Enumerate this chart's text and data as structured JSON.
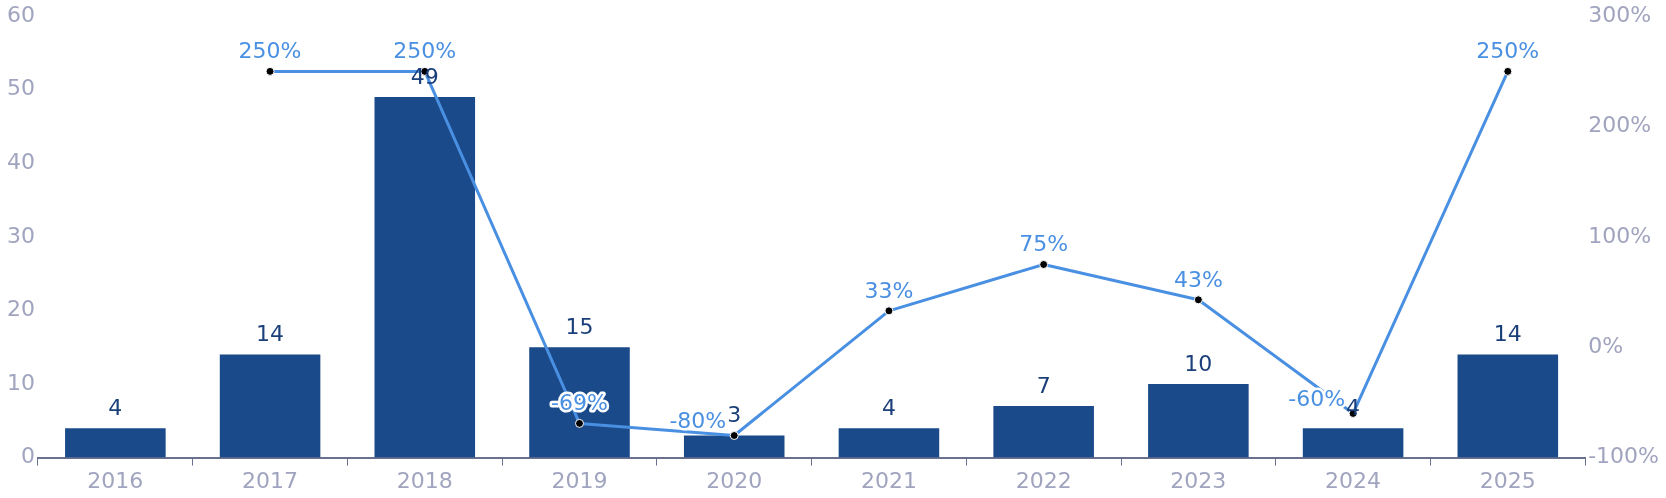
{
  "chart_data": {
    "type": "bar",
    "categories": [
      "2016",
      "2017",
      "2018",
      "2019",
      "2020",
      "2021",
      "2022",
      "2023",
      "2024",
      "2025"
    ],
    "series": [
      {
        "color": "#1a4a8a",
        "values": [
          4,
          14,
          49,
          15,
          3,
          4,
          7,
          10,
          4,
          14
        ],
        "value_labels": [
          "4",
          "14",
          "49",
          "15",
          "3",
          "4",
          "7",
          "10",
          "4",
          "14"
        ]
      },
      {
        "type": "line",
        "axis": "y2",
        "color": "#4a90e2",
        "values": [
          null,
          250,
          250,
          -69,
          -80,
          33,
          75,
          43,
          -60,
          250
        ],
        "value_labels": [
          null,
          "250%",
          "250%",
          "-69%",
          "-80%",
          "33%",
          "75%",
          "43%",
          "-60%",
          "250%"
        ]
      }
    ],
    "ylim": [
      0,
      60
    ],
    "yticks": [
      0,
      10,
      20,
      30,
      40,
      50,
      60
    ],
    "y2lim": [
      -100,
      300
    ],
    "y2ticks": [
      {
        "value": -100,
        "label": "-100%"
      },
      {
        "value": 0,
        "label": "0%"
      },
      {
        "value": 100,
        "label": "100%"
      },
      {
        "value": 200,
        "label": "200%"
      },
      {
        "value": 300,
        "label": "300%"
      }
    ],
    "grid": false,
    "legend": false,
    "marker": "circle",
    "line_style": "solid"
  }
}
